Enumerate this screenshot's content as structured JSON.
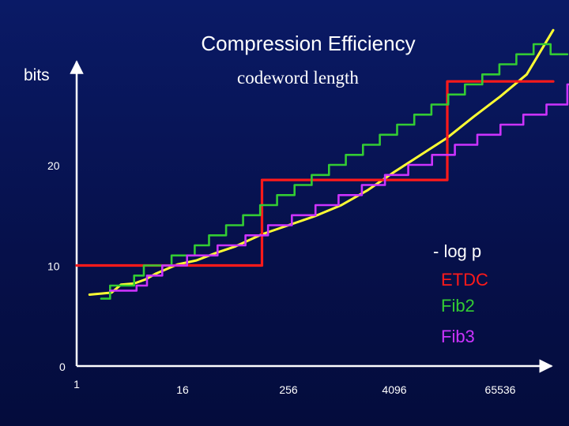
{
  "slide": {
    "title": "Compression Efficiency",
    "y_unit": "bits",
    "subtitle": "codeword length"
  },
  "colors": {
    "background": "#08145a",
    "axis": "#ffffff",
    "log_p": "#ffff33",
    "etdc": "#ff1a1a",
    "fib2": "#33cc33",
    "fib3": "#cc33ff"
  },
  "chart_data": {
    "type": "line",
    "title": "Compression Efficiency",
    "xlabel": "",
    "ylabel": "bits",
    "subtitle": "codeword length",
    "x_scale": "log2",
    "x_ticks": [
      1,
      16,
      256,
      4096,
      65536
    ],
    "x_tick_labels": [
      "1",
      "16",
      "256",
      "4096",
      "65536"
    ],
    "y_ticks": [
      0,
      10,
      20
    ],
    "y_tick_labels": [
      "0",
      "10",
      "20"
    ],
    "xlim": [
      1,
      1048576
    ],
    "ylim": [
      0,
      35
    ],
    "grid": false,
    "legend_placement": "right",
    "series": [
      {
        "name": "- log p",
        "color": "#ffff33",
        "style": "curve",
        "points": [
          [
            1.4,
            7.1
          ],
          [
            2.5,
            7.3
          ],
          [
            3.2,
            8.1
          ],
          [
            4.5,
            8.2
          ],
          [
            6,
            8.6
          ],
          [
            8,
            9.2
          ],
          [
            14,
            10.1
          ],
          [
            23,
            10.5
          ],
          [
            40,
            11.3
          ],
          [
            64,
            11.9
          ],
          [
            128,
            13.1
          ],
          [
            256,
            14.0
          ],
          [
            512,
            14.9
          ],
          [
            1024,
            16.0
          ],
          [
            2048,
            17.5
          ],
          [
            4096,
            19.3
          ],
          [
            8192,
            21.0
          ],
          [
            16384,
            22.7
          ],
          [
            32768,
            24.8
          ],
          [
            65536,
            26.8
          ],
          [
            131072,
            29.0
          ],
          [
            262144,
            33.4
          ]
        ]
      },
      {
        "name": "ETDC",
        "color": "#ff1a1a",
        "style": "step",
        "steps": [
          [
            1,
            10
          ],
          [
            128,
            10
          ],
          [
            128,
            18.5
          ],
          [
            16384,
            18.5
          ],
          [
            16384,
            28.3
          ],
          [
            262144,
            28.3
          ]
        ]
      },
      {
        "name": "Fib2",
        "color": "#33cc33",
        "style": "step",
        "steps": [
          [
            1.9,
            6.7
          ],
          [
            2.4,
            6.7
          ],
          [
            2.4,
            8
          ],
          [
            4.5,
            8
          ],
          [
            4.5,
            9
          ],
          [
            5.8,
            9
          ],
          [
            5.8,
            10
          ],
          [
            12,
            10
          ],
          [
            12,
            11
          ],
          [
            22,
            11
          ],
          [
            22,
            12
          ],
          [
            32,
            12
          ],
          [
            32,
            13
          ],
          [
            50,
            13
          ],
          [
            50,
            14
          ],
          [
            78,
            14
          ],
          [
            78,
            15
          ],
          [
            122,
            15
          ],
          [
            122,
            16
          ],
          [
            190,
            16
          ],
          [
            190,
            17
          ],
          [
            300,
            17
          ],
          [
            300,
            18
          ],
          [
            470,
            18
          ],
          [
            470,
            19
          ],
          [
            740,
            19
          ],
          [
            740,
            20
          ],
          [
            1150,
            20
          ],
          [
            1150,
            21
          ],
          [
            1800,
            21
          ],
          [
            1800,
            22
          ],
          [
            2800,
            22
          ],
          [
            2800,
            23
          ],
          [
            4400,
            23
          ],
          [
            4400,
            24
          ],
          [
            6900,
            24
          ],
          [
            6900,
            25
          ],
          [
            10800,
            25
          ],
          [
            10800,
            26
          ],
          [
            16800,
            26
          ],
          [
            16800,
            27
          ],
          [
            26000,
            27
          ],
          [
            26000,
            28
          ],
          [
            41000,
            28
          ],
          [
            41000,
            29
          ],
          [
            64000,
            29
          ],
          [
            64000,
            30
          ],
          [
            100000,
            30
          ],
          [
            100000,
            31
          ],
          [
            157000,
            31
          ],
          [
            157000,
            32
          ],
          [
            245000,
            32
          ],
          [
            245000,
            31
          ],
          [
            380000,
            31
          ]
        ]
      },
      {
        "name": "Fib3",
        "color": "#cc33ff",
        "style": "step",
        "steps": [
          [
            2.4,
            7.5
          ],
          [
            4.8,
            7.5
          ],
          [
            4.8,
            8
          ],
          [
            6.3,
            8
          ],
          [
            6.3,
            9
          ],
          [
            9.4,
            9
          ],
          [
            9.4,
            10
          ],
          [
            18,
            10
          ],
          [
            18,
            11
          ],
          [
            40,
            11
          ],
          [
            40,
            12
          ],
          [
            83,
            12
          ],
          [
            83,
            13
          ],
          [
            150,
            13
          ],
          [
            150,
            14
          ],
          [
            280,
            14
          ],
          [
            280,
            15
          ],
          [
            520,
            15
          ],
          [
            520,
            16
          ],
          [
            950,
            16
          ],
          [
            950,
            17
          ],
          [
            1750,
            17
          ],
          [
            1750,
            18
          ],
          [
            3200,
            18
          ],
          [
            3200,
            19
          ],
          [
            5900,
            19
          ],
          [
            5900,
            20
          ],
          [
            11000,
            20
          ],
          [
            11000,
            21
          ],
          [
            20000,
            21
          ],
          [
            20000,
            22
          ],
          [
            36000,
            22
          ],
          [
            36000,
            23
          ],
          [
            66000,
            23
          ],
          [
            66000,
            24
          ],
          [
            120000,
            24
          ],
          [
            120000,
            25
          ],
          [
            220000,
            25
          ],
          [
            220000,
            26
          ],
          [
            380000,
            26
          ],
          [
            380000,
            28
          ],
          [
            400000,
            28
          ]
        ]
      }
    ]
  }
}
